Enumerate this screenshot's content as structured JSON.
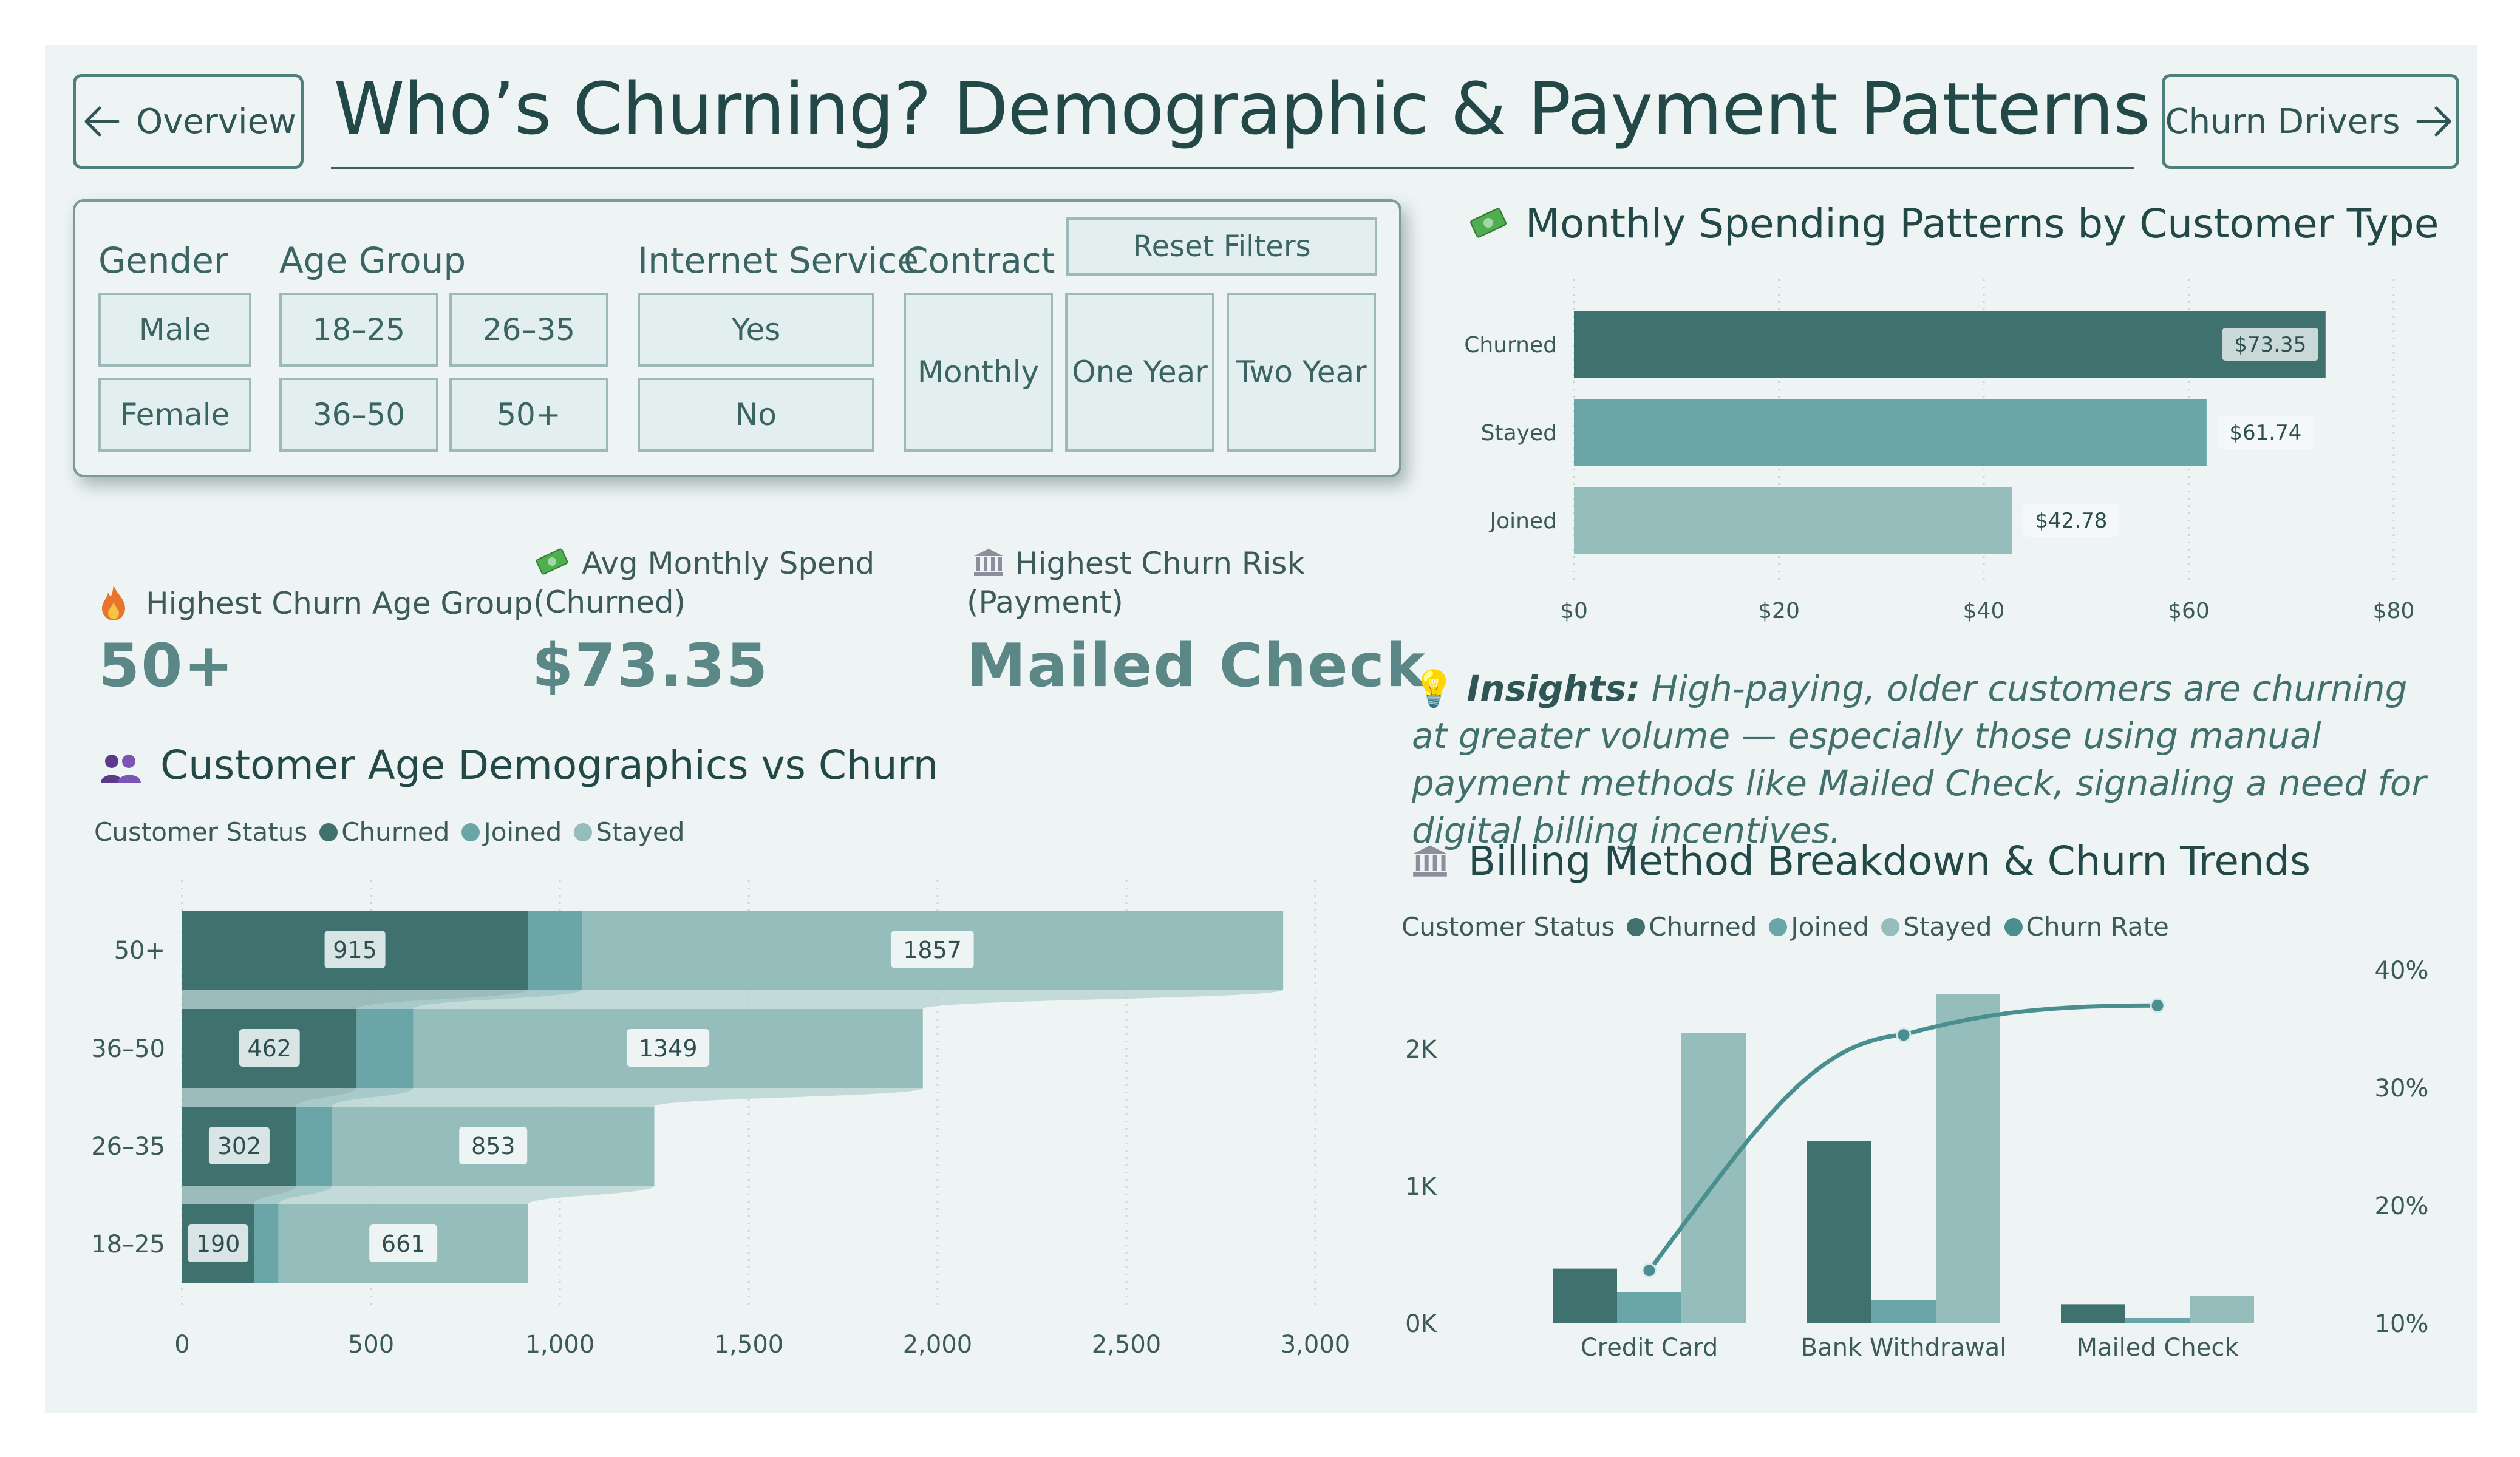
{
  "nav": {
    "back_label": "Overview",
    "forward_label": "Churn Drivers"
  },
  "page": {
    "title": "Who’s Churning? Demographic & Payment Patterns"
  },
  "filters": {
    "gender_label": "Gender",
    "gender_options": [
      "Male",
      "Female"
    ],
    "age_label": "Age Group",
    "age_options": [
      "18–25",
      "26–35",
      "36–50",
      "50+"
    ],
    "internet_label": "Internet Service",
    "internet_options": [
      "Yes",
      "No"
    ],
    "contract_label": "Contract",
    "contract_options": [
      "Monthly",
      "One Year",
      "Two Year"
    ],
    "reset_label": "Reset Filters"
  },
  "kpis": {
    "age": {
      "icon": "fire-icon",
      "label": "Highest Churn Age Group",
      "value": "50+"
    },
    "spend": {
      "icon": "money-icon",
      "label_line1": "Avg Monthly Spend",
      "label_line2": "(Churned)",
      "value": "$73.35"
    },
    "payment": {
      "icon": "bank-icon",
      "label_line1": "Highest Churn Risk",
      "label_line2": "(Payment)",
      "value": "Mailed Check"
    }
  },
  "insight": {
    "icon": "lightbulb-icon",
    "lead": "Insights:",
    "text": "High-paying, older customers are churning at greater volume — especially those using manual payment methods like Mailed Check, signaling a need for digital billing incentives."
  },
  "colors": {
    "churned": "#3f716f",
    "joined": "#6aa6a7",
    "stayed": "#94bdbb",
    "churn_rate": "#4a8f8f",
    "background": "#edf4f3"
  },
  "chart_data": [
    {
      "id": "spending",
      "type": "bar",
      "orientation": "horizontal",
      "title": "Monthly Spending Patterns by Customer Type",
      "title_icon": "money-icon",
      "categories": [
        "Churned",
        "Stayed",
        "Joined"
      ],
      "values": [
        73.35,
        61.74,
        42.78
      ],
      "data_labels": [
        "$73.35",
        "$61.74",
        "$42.78"
      ],
      "xlim": [
        0,
        80
      ],
      "x_ticks": [
        "$0",
        "$20",
        "$40",
        "$60",
        "$80"
      ],
      "grid": true
    },
    {
      "id": "age",
      "type": "bar",
      "orientation": "horizontal",
      "stacked": true,
      "title": "Customer Age Demographics vs Churn",
      "title_icon": "people-icon",
      "legend_title": "Customer Status",
      "categories": [
        "50+",
        "36–50",
        "26–35",
        "18–25"
      ],
      "series": [
        {
          "name": "Churned",
          "values": [
            915,
            462,
            302,
            190
          ]
        },
        {
          "name": "Joined",
          "values": [
            143,
            150,
            95,
            65
          ]
        },
        {
          "name": "Stayed",
          "values": [
            1857,
            1349,
            853,
            661
          ]
        }
      ],
      "data_labels": {
        "Churned": [
          "915",
          "462",
          "302",
          "190"
        ],
        "Stayed": [
          "1857",
          "1349",
          "853",
          "661"
        ]
      },
      "xlim": [
        0,
        3000
      ],
      "x_ticks": [
        "0",
        "500",
        "1,000",
        "1,500",
        "2,000",
        "2,500",
        "3,000"
      ],
      "grid": true
    },
    {
      "id": "billing",
      "type": "bar",
      "combo_line": true,
      "title": "Billing Method Breakdown & Churn Trends",
      "title_icon": "bank-icon",
      "legend_title": "Customer Status",
      "categories": [
        "Credit Card",
        "Bank Withdrawal",
        "Mailed Check"
      ],
      "series": [
        {
          "name": "Churned",
          "values": [
            400,
            1330,
            140
          ]
        },
        {
          "name": "Joined",
          "values": [
            230,
            170,
            40
          ]
        },
        {
          "name": "Stayed",
          "values": [
            2120,
            2400,
            200
          ]
        }
      ],
      "line_series": {
        "name": "Churn Rate",
        "values": [
          14.5,
          34.5,
          37.0
        ]
      },
      "ylim": [
        0,
        2700
      ],
      "y_ticks": [
        "0K",
        "1K",
        "2K"
      ],
      "y2lim": [
        10,
        40
      ],
      "y2_ticks": [
        "10%",
        "20%",
        "30%",
        "40%"
      ]
    }
  ]
}
